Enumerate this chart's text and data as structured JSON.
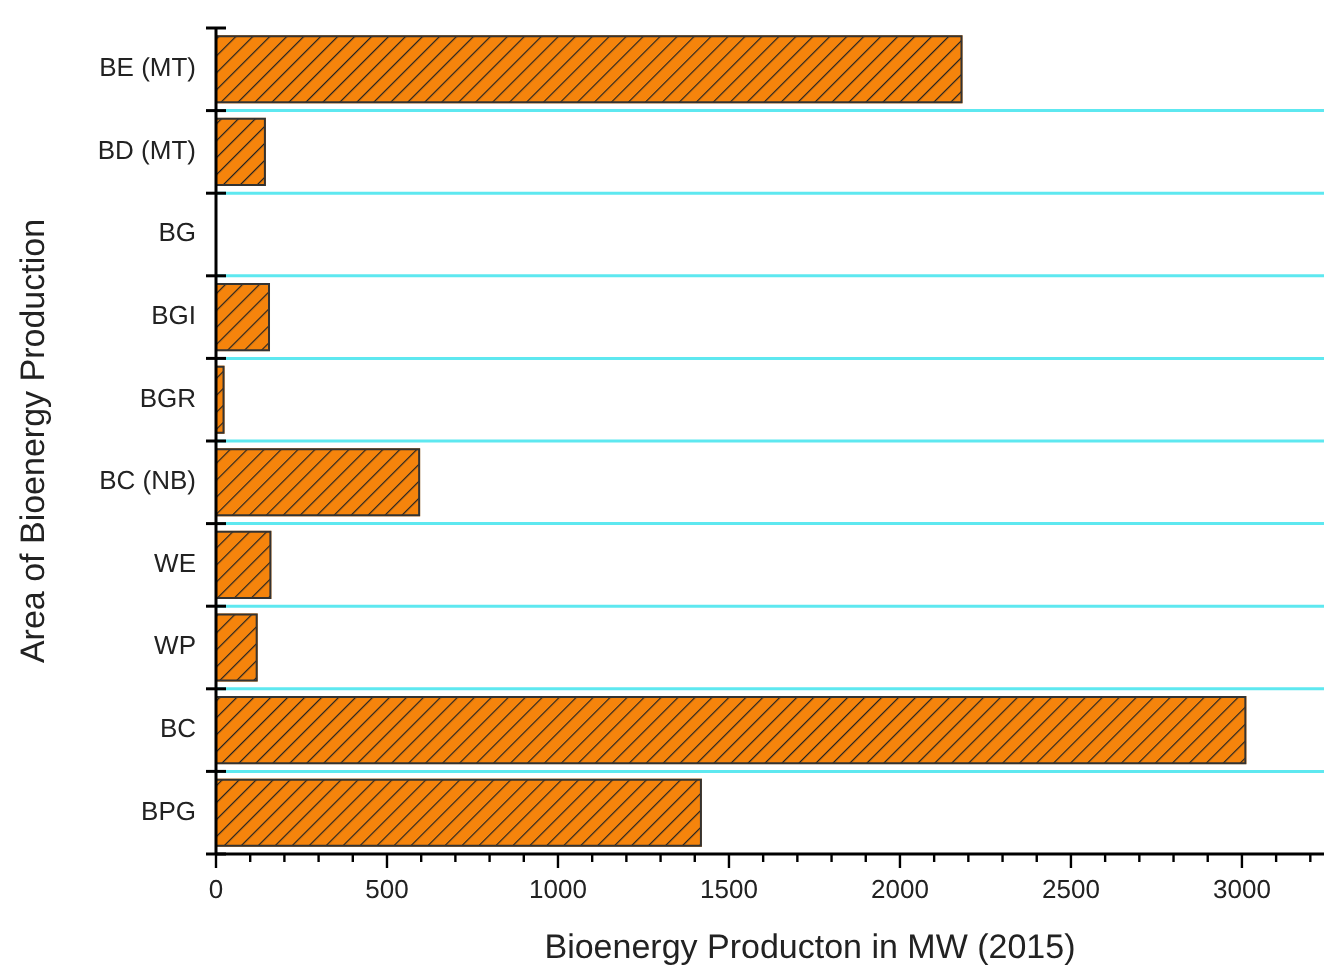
{
  "chart_data": {
    "type": "bar",
    "orientation": "horizontal",
    "xlabel": "Bioenergy Producton in MW (2015)",
    "ylabel": "Area of Bioenergy Production",
    "categories": [
      "BE (MT)",
      "BD (MT)",
      "BG",
      "BGI",
      "BGR",
      "BC (NB)",
      "WE",
      "WP",
      "BC",
      "BPG"
    ],
    "values": [
      2180,
      143,
      0,
      155,
      22,
      594,
      159,
      119,
      3010,
      1418
    ],
    "color": "#f5840c",
    "xlim": [
      0,
      3240
    ],
    "xticks": [
      0,
      {
        "value": 100,
        "label": null
      },
      {
        "value": 200,
        "label": null
      },
      {
        "value": 300,
        "label": null
      },
      {
        "value": 400,
        "label": null
      },
      500,
      {
        "value": 600,
        "label": null
      },
      {
        "value": 700,
        "label": null
      },
      {
        "value": 800,
        "label": null
      },
      {
        "value": 900,
        "label": null
      },
      1000,
      {
        "value": 1100,
        "label": null
      },
      {
        "value": 1200,
        "label": null
      },
      {
        "value": 1300,
        "label": null
      },
      {
        "value": 1400,
        "label": null
      },
      1500,
      {
        "value": 1600,
        "label": null
      },
      {
        "value": 1700,
        "label": null
      },
      {
        "value": 1800,
        "label": null
      },
      {
        "value": 1900,
        "label": null
      },
      2000,
      {
        "value": 2100,
        "label": null
      },
      {
        "value": 2200,
        "label": null
      },
      {
        "value": 2300,
        "label": null
      },
      {
        "value": 2400,
        "label": null
      },
      2500,
      {
        "value": 2600,
        "label": null
      },
      {
        "value": 2700,
        "label": null
      },
      {
        "value": 2800,
        "label": null
      },
      {
        "value": 2900,
        "label": null
      },
      3000,
      {
        "value": 3100,
        "label": null
      },
      {
        "value": 3200,
        "label": null
      }
    ],
    "grid": "y"
  }
}
